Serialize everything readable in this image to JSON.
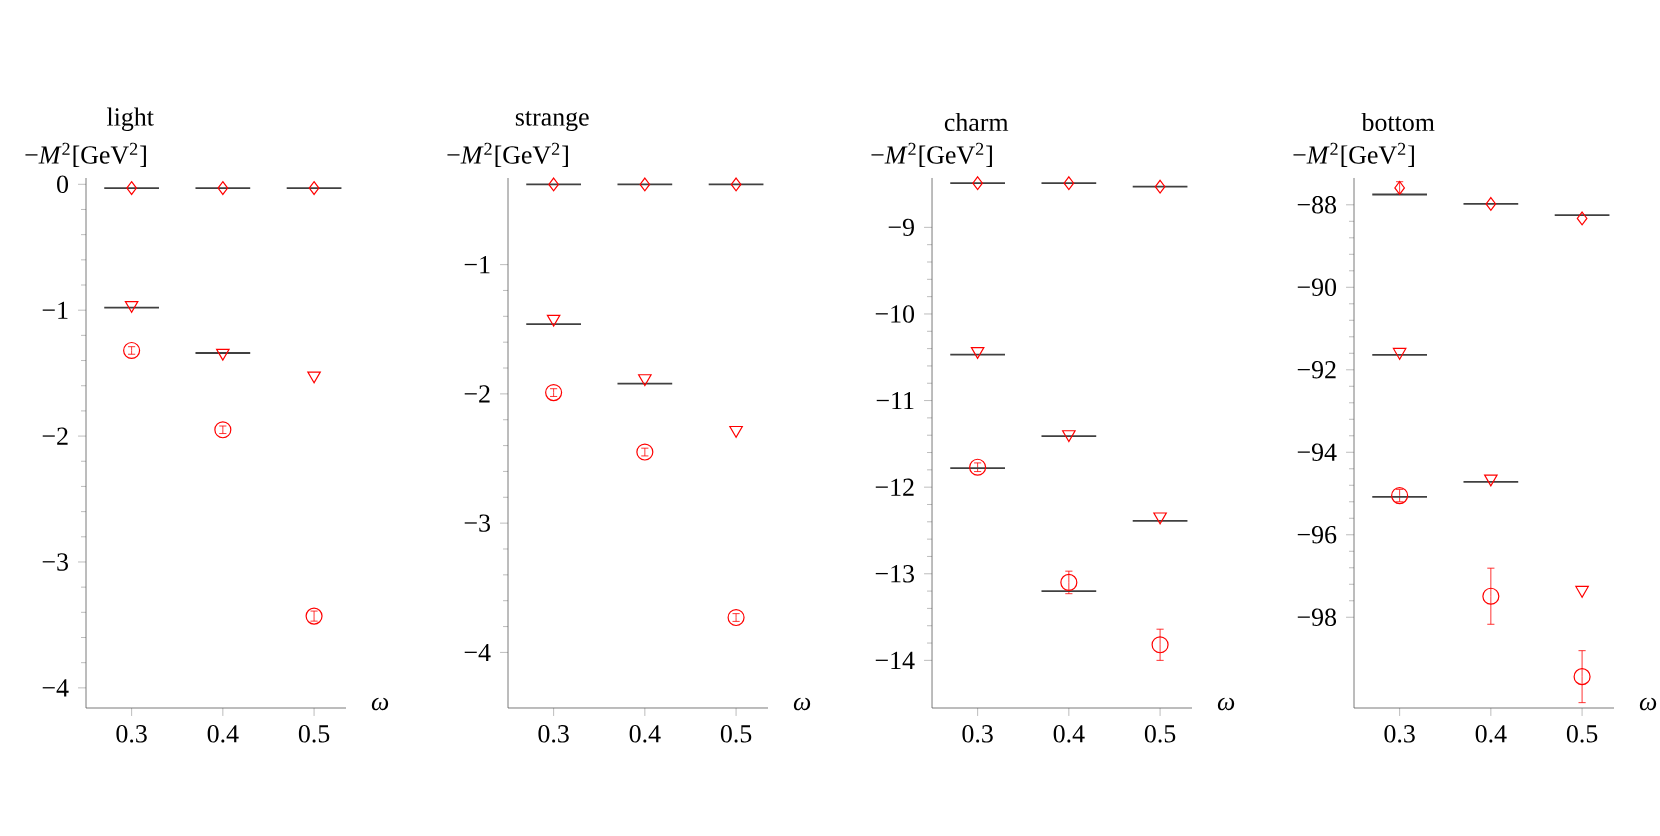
{
  "chart_data": [
    {
      "type": "scatter",
      "title": "light",
      "xlabel": "ω",
      "ylabel": "−*M*$^{2}$[GeV$^{2}$]",
      "x": [
        0.3,
        0.4,
        0.5
      ],
      "xlim": [
        0.25,
        0.535
      ],
      "xticks": [
        0.3,
        0.4,
        0.5
      ],
      "ylim": [
        -4.16,
        0.05
      ],
      "yticks": [
        {
          "value": 0,
          "label": "0"
        },
        {
          "value": -1,
          "label": "−1"
        },
        {
          "value": -2,
          "label": "−2"
        },
        {
          "value": -3,
          "label": "−3"
        },
        {
          "value": -4,
          "label": "−4"
        }
      ],
      "series": [
        {
          "color": "#ff0000",
          "marker": "diamond",
          "values": [
            -0.03,
            -0.03,
            -0.03
          ]
        },
        {
          "color": "#ff0000",
          "marker": "triangle",
          "values": [
            -0.96,
            -1.34,
            -1.52
          ]
        },
        {
          "color": "#ff0000",
          "marker": "circle",
          "values": [
            -1.32,
            -1.95,
            -3.43
          ],
          "errors": [
            0.03,
            0.03,
            0.04
          ]
        },
        {
          "type": "line",
          "color": "#404040",
          "x": [
            0.27,
            0.33
          ],
          "values": [
            -0.03,
            -0.03
          ]
        },
        {
          "type": "line",
          "color": "#404040",
          "x": [
            0.37,
            0.43
          ],
          "values": [
            -0.03,
            -0.03
          ]
        },
        {
          "type": "line",
          "color": "#404040",
          "x": [
            0.47,
            0.53
          ],
          "values": [
            -0.03,
            -0.03
          ]
        },
        {
          "type": "line",
          "color": "#404040",
          "x": [
            0.27,
            0.33
          ],
          "values": [
            -0.98,
            -0.98
          ]
        },
        {
          "type": "line",
          "color": "#404040",
          "x": [
            0.37,
            0.43
          ],
          "values": [
            -1.34,
            -1.34
          ]
        }
      ]
    },
    {
      "type": "scatter",
      "title": "strange",
      "xlabel": "ω",
      "ylabel": "−*M*$^{2}$[GeV$^{2}$]",
      "x": [
        0.3,
        0.4,
        0.5
      ],
      "xlim": [
        0.25,
        0.535
      ],
      "xticks": [
        0.3,
        0.4,
        0.5
      ],
      "ylim": [
        -4.43,
        -0.33
      ],
      "yticks": [
        {
          "value": -1,
          "label": "−1"
        },
        {
          "value": -2,
          "label": "−2"
        },
        {
          "value": -3,
          "label": "−3"
        },
        {
          "value": -4,
          "label": "−4"
        }
      ],
      "series": [
        {
          "color": "#ff0000",
          "marker": "diamond",
          "values": [
            -0.38,
            -0.38,
            -0.38
          ]
        },
        {
          "color": "#ff0000",
          "marker": "triangle",
          "values": [
            -1.42,
            -1.88,
            -2.28
          ]
        },
        {
          "color": "#ff0000",
          "marker": "circle",
          "values": [
            -1.99,
            -2.45,
            -3.73
          ],
          "errors": [
            0.03,
            0.03,
            0.03
          ]
        },
        {
          "type": "line",
          "color": "#404040",
          "x": [
            0.27,
            0.33
          ],
          "values": [
            -0.38,
            -0.38
          ]
        },
        {
          "type": "line",
          "color": "#404040",
          "x": [
            0.37,
            0.43
          ],
          "values": [
            -0.38,
            -0.38
          ]
        },
        {
          "type": "line",
          "color": "#404040",
          "x": [
            0.47,
            0.53
          ],
          "values": [
            -0.38,
            -0.38
          ]
        },
        {
          "type": "line",
          "color": "#404040",
          "x": [
            0.27,
            0.33
          ],
          "values": [
            -1.46,
            -1.46
          ]
        },
        {
          "type": "line",
          "color": "#404040",
          "x": [
            0.37,
            0.43
          ],
          "values": [
            -1.92,
            -1.92
          ]
        }
      ]
    },
    {
      "type": "scatter",
      "title": "charm",
      "xlabel": "ω",
      "ylabel": "−*M*$^{2}$[GeV$^{2}$]",
      "x": [
        0.3,
        0.4,
        0.5
      ],
      "xlim": [
        0.25,
        0.535
      ],
      "xticks": [
        0.3,
        0.4,
        0.5
      ],
      "ylim": [
        -14.55,
        -8.43
      ],
      "yticks": [
        {
          "value": -9,
          "label": "−9"
        },
        {
          "value": -10,
          "label": "−10"
        },
        {
          "value": -11,
          "label": "−11"
        },
        {
          "value": -12,
          "label": "−12"
        },
        {
          "value": -13,
          "label": "−13"
        },
        {
          "value": -14,
          "label": "−14"
        }
      ],
      "series": [
        {
          "color": "#ff0000",
          "marker": "diamond",
          "values": [
            -8.49,
            -8.49,
            -8.53
          ]
        },
        {
          "color": "#ff0000",
          "marker": "triangle",
          "values": [
            -10.43,
            -11.39,
            -12.34
          ]
        },
        {
          "color": "#ff0000",
          "marker": "circle",
          "values": [
            -11.77,
            -13.1,
            -13.82
          ],
          "errors": [
            0.05,
            0.13,
            0.18
          ]
        },
        {
          "type": "line",
          "color": "#404040",
          "x": [
            0.27,
            0.33
          ],
          "values": [
            -8.49,
            -8.49
          ]
        },
        {
          "type": "line",
          "color": "#404040",
          "x": [
            0.37,
            0.43
          ],
          "values": [
            -8.49,
            -8.49
          ]
        },
        {
          "type": "line",
          "color": "#404040",
          "x": [
            0.47,
            0.53
          ],
          "values": [
            -8.53,
            -8.53
          ]
        },
        {
          "type": "line",
          "color": "#404040",
          "x": [
            0.27,
            0.33
          ],
          "values": [
            -10.47,
            -10.47
          ]
        },
        {
          "type": "line",
          "color": "#404040",
          "x": [
            0.37,
            0.43
          ],
          "values": [
            -11.41,
            -11.41
          ]
        },
        {
          "type": "line",
          "color": "#404040",
          "x": [
            0.47,
            0.53
          ],
          "values": [
            -12.39,
            -12.39
          ]
        },
        {
          "type": "line",
          "color": "#404040",
          "x": [
            0.27,
            0.33
          ],
          "values": [
            -11.78,
            -11.78
          ]
        },
        {
          "type": "line",
          "color": "#404040",
          "x": [
            0.37,
            0.43
          ],
          "values": [
            -13.2,
            -13.2
          ]
        }
      ]
    },
    {
      "type": "scatter",
      "title": "bottom",
      "xlabel": "ω",
      "ylabel": "−*M*$^{2}$[GeV$^{2}$]",
      "x": [
        0.3,
        0.4,
        0.5
      ],
      "xlim": [
        0.25,
        0.535
      ],
      "xticks": [
        0.3,
        0.4,
        0.5
      ],
      "ylim": [
        -100.2,
        -87.35
      ],
      "yticks": [
        {
          "value": -88,
          "label": "−88"
        },
        {
          "value": -90,
          "label": "−90"
        },
        {
          "value": -92,
          "label": "−92"
        },
        {
          "value": -94,
          "label": "−94"
        },
        {
          "value": -96,
          "label": "−96"
        },
        {
          "value": -98,
          "label": "−98"
        }
      ],
      "series": [
        {
          "color": "#ff0000",
          "marker": "diamond",
          "values": [
            -87.59,
            -87.98,
            -88.33
          ],
          "errors": [
            0.15,
            null,
            null
          ]
        },
        {
          "color": "#ff0000",
          "marker": "triangle",
          "values": [
            -91.57,
            -94.64,
            -97.34
          ]
        },
        {
          "color": "#ff0000",
          "marker": "circle",
          "values": [
            -95.05,
            -97.49,
            -99.44
          ],
          "errors": [
            0.15,
            0.68,
            0.63
          ]
        },
        {
          "type": "line",
          "color": "#404040",
          "x": [
            0.27,
            0.33
          ],
          "values": [
            -87.75,
            -87.75
          ]
        },
        {
          "type": "line",
          "color": "#404040",
          "x": [
            0.37,
            0.43
          ],
          "values": [
            -87.98,
            -87.98
          ]
        },
        {
          "type": "line",
          "color": "#404040",
          "x": [
            0.47,
            0.53
          ],
          "values": [
            -88.25,
            -88.25
          ]
        },
        {
          "type": "line",
          "color": "#404040",
          "x": [
            0.27,
            0.33
          ],
          "values": [
            -91.64,
            -91.64
          ]
        },
        {
          "type": "line",
          "color": "#404040",
          "x": [
            0.37,
            0.43
          ],
          "values": [
            -94.72,
            -94.72
          ]
        },
        {
          "type": "line",
          "color": "#404040",
          "x": [
            0.27,
            0.33
          ],
          "values": [
            -95.08,
            -95.08
          ]
        }
      ]
    }
  ]
}
